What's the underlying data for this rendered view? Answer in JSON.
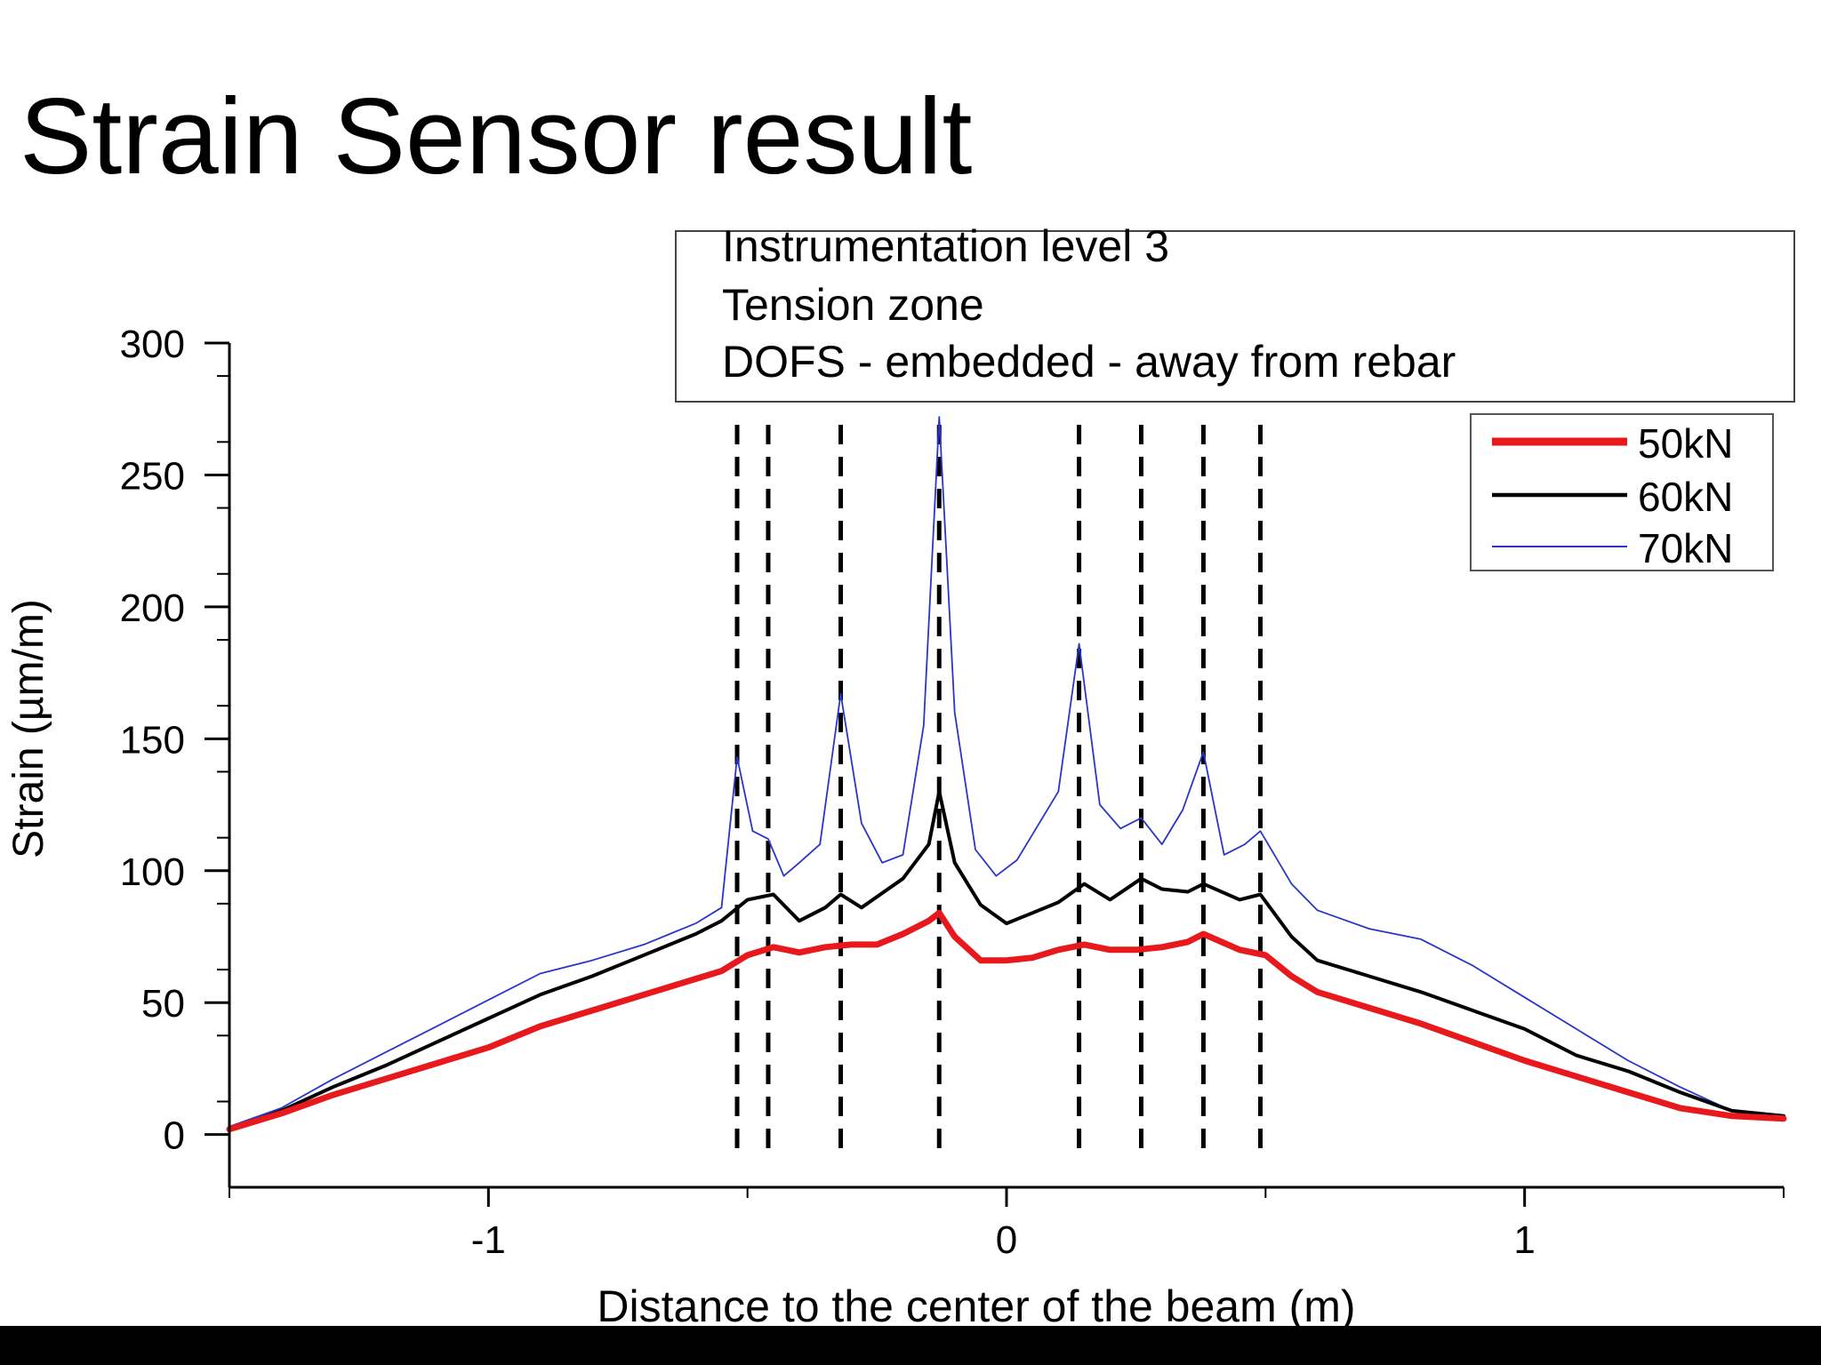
{
  "slide": {
    "title": "Strain Sensor result"
  },
  "colors": {
    "series_50": "#e8191c",
    "series_60": "#000000",
    "series_70": "#2a35c9",
    "crack_lines": "#000000"
  },
  "chart_data": {
    "type": "line",
    "xlabel": "Distance to the center of the beam (m)",
    "ylabel": "Strain (µm/m)",
    "xlim": [
      -1.5,
      1.5
    ],
    "ylim": [
      -20,
      300
    ],
    "xticks": [
      -1,
      0,
      1
    ],
    "xtick_labels": [
      "-1",
      "0",
      "1"
    ],
    "yticks": [
      0,
      50,
      100,
      150,
      200,
      250,
      300
    ],
    "ytick_labels": [
      "0",
      "50",
      "100",
      "150",
      "200",
      "250",
      "300"
    ],
    "annotation_lines": [
      "Instrumentation level 3",
      "Tension zone",
      "DOFS - embedded - away from rebar"
    ],
    "legend_position": "top-right",
    "crack_positions": [
      -0.52,
      -0.46,
      -0.32,
      -0.13,
      0.14,
      0.26,
      0.38,
      0.49
    ],
    "series": [
      {
        "name": "50kN",
        "x": [
          -1.5,
          -1.4,
          -1.3,
          -1.2,
          -1.1,
          -1.0,
          -0.9,
          -0.8,
          -0.7,
          -0.6,
          -0.55,
          -0.5,
          -0.45,
          -0.4,
          -0.35,
          -0.3,
          -0.25,
          -0.2,
          -0.15,
          -0.13,
          -0.1,
          -0.05,
          0,
          0.05,
          0.1,
          0.15,
          0.2,
          0.25,
          0.3,
          0.35,
          0.38,
          0.45,
          0.5,
          0.55,
          0.6,
          0.7,
          0.8,
          0.9,
          1.0,
          1.1,
          1.2,
          1.3,
          1.4,
          1.5
        ],
        "y": [
          2,
          8,
          15,
          21,
          27,
          33,
          41,
          47,
          53,
          59,
          62,
          68,
          71,
          69,
          71,
          72,
          72,
          76,
          81,
          84,
          75,
          66,
          66,
          67,
          70,
          72,
          70,
          70,
          71,
          73,
          76,
          70,
          68,
          60,
          54,
          48,
          42,
          35,
          28,
          22,
          16,
          10,
          7,
          6
        ]
      },
      {
        "name": "60kN",
        "x": [
          -1.5,
          -1.4,
          -1.3,
          -1.2,
          -1.1,
          -1.0,
          -0.9,
          -0.8,
          -0.7,
          -0.6,
          -0.55,
          -0.5,
          -0.45,
          -0.4,
          -0.35,
          -0.32,
          -0.28,
          -0.2,
          -0.15,
          -0.13,
          -0.1,
          -0.05,
          0,
          0.05,
          0.1,
          0.15,
          0.2,
          0.26,
          0.3,
          0.35,
          0.38,
          0.45,
          0.49,
          0.55,
          0.6,
          0.7,
          0.8,
          0.9,
          1.0,
          1.1,
          1.2,
          1.3,
          1.4,
          1.5
        ],
        "y": [
          2,
          9,
          18,
          26,
          35,
          44,
          53,
          60,
          68,
          76,
          81,
          89,
          91,
          81,
          86,
          91,
          86,
          97,
          110,
          130,
          103,
          87,
          80,
          84,
          88,
          95,
          89,
          97,
          93,
          92,
          95,
          89,
          91,
          75,
          66,
          60,
          54,
          47,
          40,
          30,
          24,
          16,
          9,
          7
        ]
      },
      {
        "name": "70kN",
        "x": [
          -1.5,
          -1.4,
          -1.3,
          -1.2,
          -1.1,
          -1.0,
          -0.9,
          -0.8,
          -0.7,
          -0.6,
          -0.55,
          -0.52,
          -0.49,
          -0.46,
          -0.43,
          -0.4,
          -0.36,
          -0.32,
          -0.28,
          -0.24,
          -0.2,
          -0.16,
          -0.13,
          -0.1,
          -0.06,
          -0.02,
          0.02,
          0.06,
          0.1,
          0.14,
          0.18,
          0.22,
          0.26,
          0.3,
          0.34,
          0.38,
          0.42,
          0.46,
          0.49,
          0.55,
          0.6,
          0.7,
          0.8,
          0.9,
          1.0,
          1.1,
          1.2,
          1.3,
          1.4,
          1.5
        ],
        "y": [
          3,
          10,
          21,
          31,
          41,
          51,
          61,
          66,
          72,
          80,
          86,
          143,
          115,
          112,
          98,
          103,
          110,
          167,
          118,
          103,
          106,
          155,
          272,
          160,
          108,
          98,
          104,
          117,
          130,
          186,
          125,
          116,
          120,
          110,
          123,
          145,
          106,
          110,
          115,
          95,
          85,
          78,
          74,
          64,
          52,
          40,
          28,
          18,
          9,
          6
        ]
      }
    ]
  }
}
